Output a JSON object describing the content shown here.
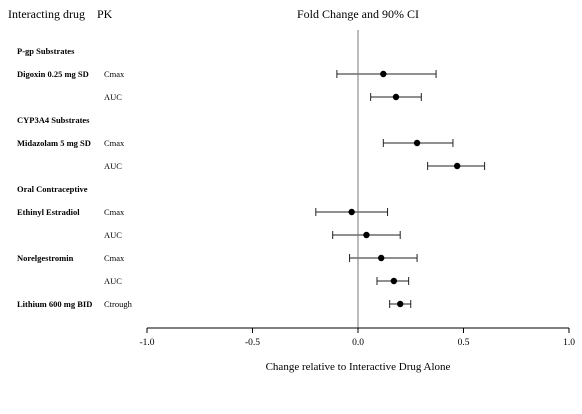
{
  "headers": {
    "interacting_drug": "Interacting drug",
    "pk": "PK",
    "plot_title": "Fold Change and 90% CI"
  },
  "chart_data": {
    "type": "forest",
    "title": "Fold Change and 90% CI",
    "xlabel": "Change relative to Interactive Drug Alone",
    "xlim": [
      -1.0,
      1.0
    ],
    "xticks": [
      "-1.0",
      "-0.5",
      "0.0",
      "0.5",
      "1.0"
    ],
    "reference_line": 0.0,
    "rows": [
      {
        "kind": "group",
        "label": "P-gp Substrates"
      },
      {
        "kind": "data",
        "drug": "Digoxin 0.25 mg SD",
        "pk": "Cmax",
        "est": 0.12,
        "lo": -0.1,
        "hi": 0.37
      },
      {
        "kind": "data",
        "drug": "",
        "pk": "AUC",
        "est": 0.18,
        "lo": 0.06,
        "hi": 0.3
      },
      {
        "kind": "group",
        "label": "CYP3A4 Substrates"
      },
      {
        "kind": "data",
        "drug": "Midazolam 5 mg SD",
        "pk": "Cmax",
        "est": 0.28,
        "lo": 0.12,
        "hi": 0.45
      },
      {
        "kind": "data",
        "drug": "",
        "pk": "AUC",
        "est": 0.47,
        "lo": 0.33,
        "hi": 0.6
      },
      {
        "kind": "group",
        "label": "Oral Contraceptive"
      },
      {
        "kind": "data",
        "drug": "Ethinyl Estradiol",
        "pk": "Cmax",
        "est": -0.03,
        "lo": -0.2,
        "hi": 0.14
      },
      {
        "kind": "data",
        "drug": "",
        "pk": "AUC",
        "est": 0.04,
        "lo": -0.12,
        "hi": 0.2
      },
      {
        "kind": "data",
        "drug": "Norelgestromin",
        "pk": "Cmax",
        "est": 0.11,
        "lo": -0.04,
        "hi": 0.28
      },
      {
        "kind": "data",
        "drug": "",
        "pk": "AUC",
        "est": 0.17,
        "lo": 0.09,
        "hi": 0.24
      },
      {
        "kind": "data",
        "drug": "Lithium 600 mg BID",
        "pk": "Ctrough",
        "est": 0.2,
        "lo": 0.15,
        "hi": 0.25
      }
    ],
    "grid": false,
    "legend": "none"
  }
}
